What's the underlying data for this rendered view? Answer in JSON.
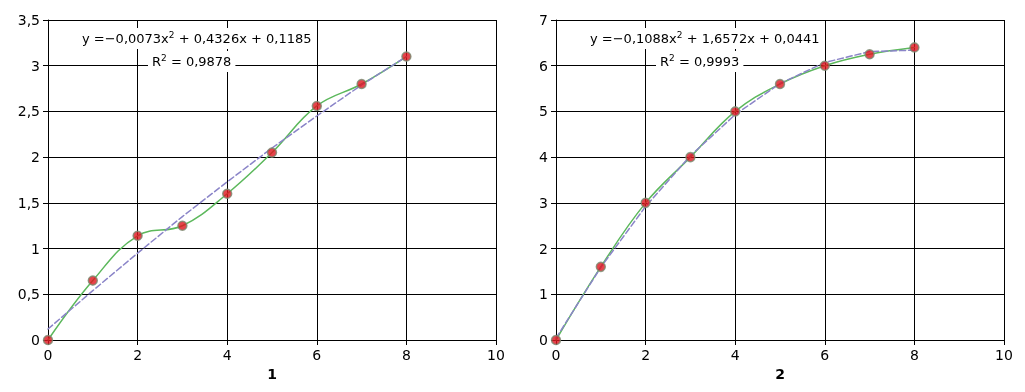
{
  "chart_data": [
    {
      "type": "line",
      "xlabel": "1",
      "annotations": [
        "y =−0,0073x$^{2}$ + 0,4326x + 0,1185",
        "R$^{2}$ = 0,9878"
      ],
      "grid": true,
      "xlim": [
        0,
        10
      ],
      "xticks": [
        0,
        2,
        4,
        6,
        8,
        10
      ],
      "ylim": [
        0,
        3.5
      ],
      "yticks": [
        0,
        {
          "value": 0.5,
          "label": "0,5"
        },
        1,
        {
          "value": 1.5,
          "label": "1,5"
        },
        2,
        {
          "value": 2.5,
          "label": "2,5"
        },
        3,
        {
          "value": 3.5,
          "label": "3,5"
        }
      ],
      "series": [
        {
          "color": "#5cb85c",
          "marker": "none",
          "x": [
            0,
            1,
            2,
            3,
            4,
            5,
            6,
            7,
            8
          ],
          "values": [
            0,
            0.65,
            1.14,
            1.25,
            1.6,
            2.05,
            2.56,
            2.8,
            3.1
          ]
        },
        {
          "type": "scatter",
          "marker": "circle",
          "color": "#e0141e",
          "x": [
            0,
            1,
            2,
            3,
            4,
            5,
            6,
            7,
            8
          ],
          "values": [
            0,
            0.65,
            1.14,
            1.25,
            1.6,
            2.05,
            2.56,
            2.8,
            3.1
          ]
        },
        {
          "type": "line",
          "marker": "none",
          "color": "#8a84c8",
          "line_style": "dashed",
          "x": [
            0,
            1,
            2,
            3,
            4,
            5,
            6,
            7,
            8
          ],
          "values": [
            0.12,
            0.54,
            0.95,
            1.35,
            1.73,
            2.1,
            2.45,
            2.79,
            3.1
          ]
        }
      ]
    },
    {
      "type": "line",
      "xlabel": "2",
      "annotations": [
        "y =−0,1088x$^{2}$ + 1,6572x + 0,0441",
        "R$^{2}$ = 0,9993"
      ],
      "grid": true,
      "xlim": [
        0,
        10
      ],
      "xticks": [
        0,
        2,
        4,
        6,
        8,
        10
      ],
      "ylim": [
        0,
        7
      ],
      "yticks": [
        0,
        1,
        2,
        3,
        4,
        5,
        6,
        7
      ],
      "series": [
        {
          "color": "#5cb85c",
          "marker": "none",
          "x": [
            0,
            1,
            2,
            3,
            4,
            5,
            6,
            7,
            8
          ],
          "values": [
            0,
            1.6,
            3,
            4,
            5,
            5.6,
            6,
            6.25,
            6.4
          ]
        },
        {
          "type": "scatter",
          "marker": "circle",
          "color": "#e0141e",
          "x": [
            0,
            1,
            2,
            3,
            4,
            5,
            6,
            7,
            8
          ],
          "values": [
            0,
            1.6,
            3,
            4,
            5,
            5.6,
            6,
            6.25,
            6.4
          ]
        },
        {
          "type": "line",
          "marker": "none",
          "color": "#8a84c8",
          "line_style": "dashed",
          "x": [
            0,
            1,
            2,
            3,
            4,
            5,
            6,
            7,
            8
          ],
          "values": [
            0.04,
            1.59,
            2.92,
            4.03,
            4.93,
            5.61,
            6.07,
            6.31,
            6.34
          ]
        }
      ]
    }
  ]
}
